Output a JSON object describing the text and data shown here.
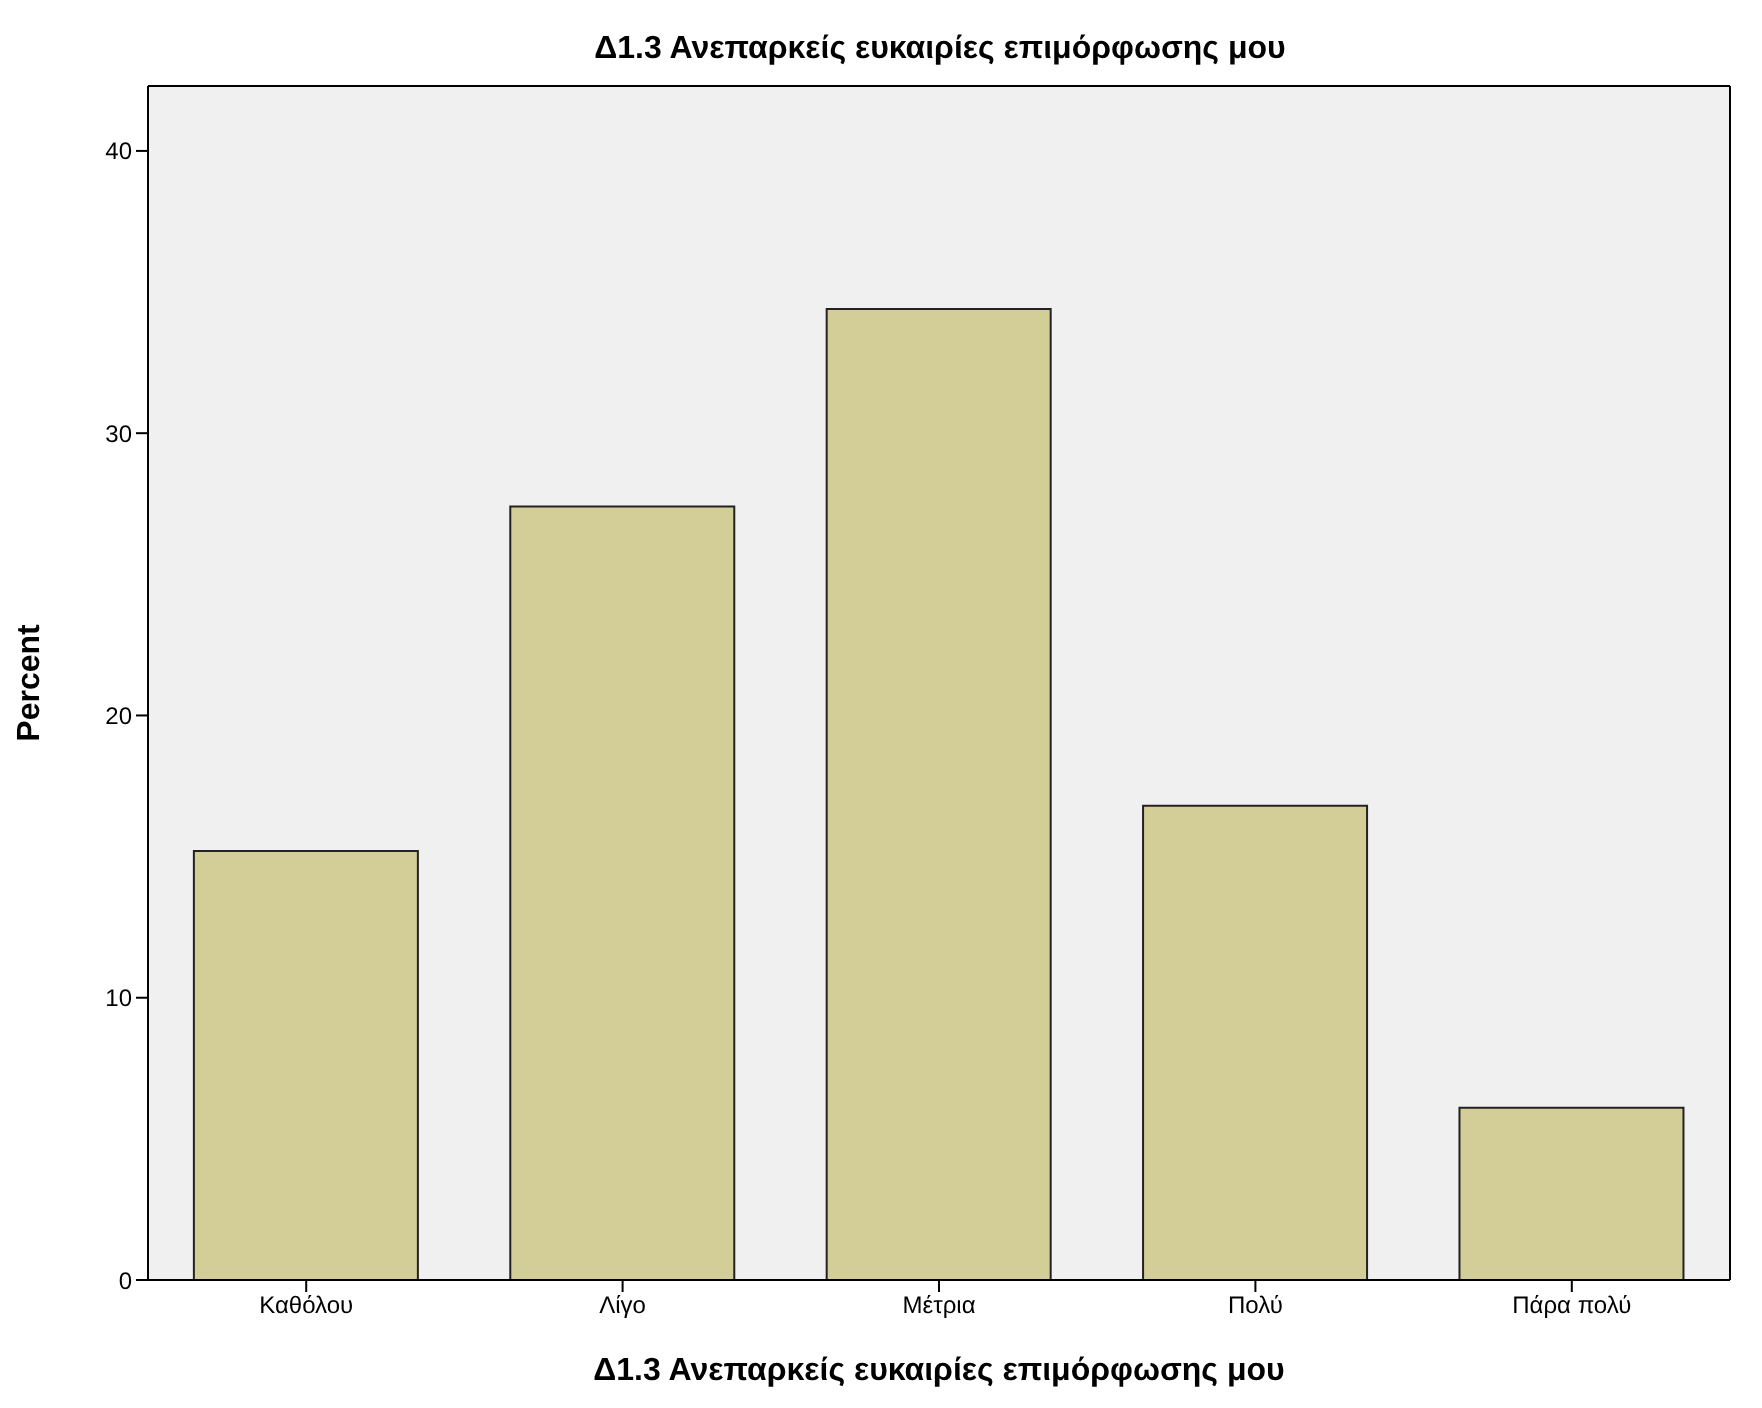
{
  "chart_data": {
    "type": "bar",
    "title": "Δ1.3 Ανεπαρκείς ευκαιρίες επιμόρφωσης μου",
    "xlabel": "Δ1.3 Ανεπαρκείς ευκαιρίες επιμόρφωσης μου",
    "ylabel": "Percent",
    "categories": [
      "Καθόλου",
      "Λίγο",
      "Μέτρια",
      "Πολύ",
      "Πάρα πολύ"
    ],
    "values": [
      15.2,
      27.4,
      34.4,
      16.8,
      6.1
    ],
    "color": "#d3ce97",
    "ylim": [
      0,
      42.3
    ],
    "yticks": [
      0,
      10,
      20,
      30,
      40
    ],
    "grid": false
  }
}
